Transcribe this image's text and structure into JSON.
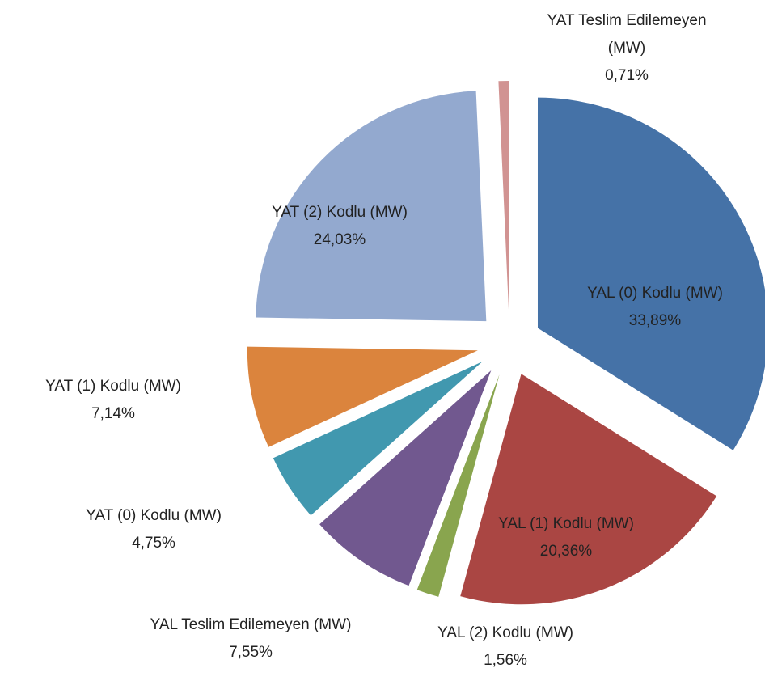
{
  "chart_data": {
    "type": "pie",
    "categories": [
      "YAL (0) Kodlu (MW)",
      "YAL (1) Kodlu (MW)",
      "YAL (2) Kodlu (MW)",
      "YAL Teslim Edilemeyen (MW)",
      "YAT (0) Kodlu (MW)",
      "YAT (1) Kodlu (MW)",
      "YAT (2) Kodlu (MW)",
      "YAT Teslim Edilemeyen (MW)"
    ],
    "values": [
      33.89,
      20.36,
      1.56,
      7.55,
      4.75,
      7.14,
      24.03,
      0.71
    ],
    "value_labels": [
      "33,89%",
      "20,36%",
      "1,56%",
      "7,55%",
      "4,75%",
      "7,14%",
      "24,03%",
      "0,71%"
    ],
    "colors": [
      "#4572a7",
      "#aa4643",
      "#89a54e",
      "#71588f",
      "#4198af",
      "#db843d",
      "#93a9cf",
      "#d19392"
    ]
  }
}
